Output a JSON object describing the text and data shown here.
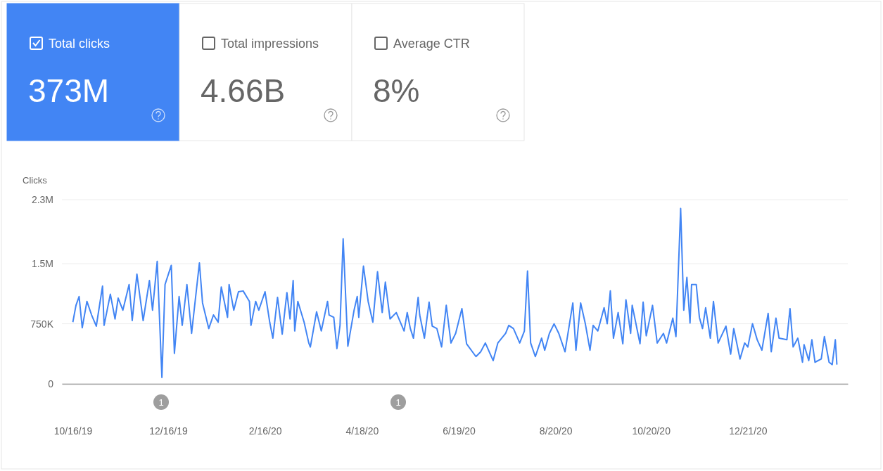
{
  "chart_data": [
    {
      "type": "other",
      "annotations": [
        "Total clicks",
        "373M",
        "Total impressions",
        "4.66B",
        "Average CTR",
        "8%"
      ]
    },
    {
      "type": "line",
      "ylabel": "Clicks",
      "grid": "y",
      "marker": "none",
      "line_style": "solid",
      "xlim": [
        "2019-10-09",
        "2021-02-23"
      ],
      "ylim": [
        0,
        2300000
      ],
      "xticks": [
        {
          "value": "2019-10-16",
          "label": "10/16/19"
        },
        {
          "value": "2019-12-16",
          "label": "12/16/19"
        },
        {
          "value": "2020-02-16",
          "label": "2/16/20"
        },
        {
          "value": "2020-04-18",
          "label": "4/18/20"
        },
        {
          "value": "2020-06-19",
          "label": "6/19/20"
        },
        {
          "value": "2020-08-20",
          "label": "8/20/20"
        },
        {
          "value": "2020-10-20",
          "label": "10/20/20"
        },
        {
          "value": "2020-12-21",
          "label": "12/21/20"
        }
      ],
      "yticks": [
        0,
        {
          "value": 750000,
          "label": "750K"
        },
        {
          "value": 1500000,
          "label": "1.5M"
        },
        {
          "value": 2300000,
          "label": "2.3M"
        }
      ],
      "annotations": [
        "1",
        "1"
      ],
      "x": [
        "2019-10-16",
        "2019-10-18",
        "2019-10-20",
        "2019-10-22",
        "2019-10-25",
        "2019-10-28",
        "2019-10-31",
        "2019-11-04",
        "2019-11-05",
        "2019-11-09",
        "2019-11-12",
        "2019-11-14",
        "2019-11-17",
        "2019-11-21",
        "2019-11-23",
        "2019-11-26",
        "2019-11-30",
        "2019-12-04",
        "2019-12-06",
        "2019-12-09",
        "2019-12-12",
        "2019-12-14",
        "2019-12-18",
        "2019-12-20",
        "2019-12-23",
        "2019-12-25",
        "2019-12-28",
        "2019-12-31",
        "2020-01-05",
        "2020-01-07",
        "2020-01-11",
        "2020-01-14",
        "2020-01-17",
        "2020-01-19",
        "2020-01-23",
        "2020-01-24",
        "2020-01-27",
        "2020-01-30",
        "2020-02-02",
        "2020-02-06",
        "2020-02-07",
        "2020-02-10",
        "2020-02-12",
        "2020-02-16",
        "2020-02-19",
        "2020-02-21",
        "2020-02-24",
        "2020-02-27",
        "2020-03-01",
        "2020-03-03",
        "2020-03-05",
        "2020-03-06",
        "2020-03-08",
        "2020-03-12",
        "2020-03-15",
        "2020-03-16",
        "2020-03-20",
        "2020-03-23",
        "2020-03-27",
        "2020-03-28",
        "2020-03-31",
        "2020-04-02",
        "2020-04-04",
        "2020-04-06",
        "2020-04-09",
        "2020-04-13",
        "2020-04-15",
        "2020-04-16",
        "2020-04-19",
        "2020-04-22",
        "2020-04-25",
        "2020-04-28",
        "2020-05-01",
        "2020-05-03",
        "2020-05-06",
        "2020-05-10",
        "2020-05-15",
        "2020-05-17",
        "2020-05-19",
        "2020-05-21",
        "2020-05-24",
        "2020-05-25",
        "2020-05-28",
        "2020-05-31",
        "2020-06-02",
        "2020-06-05",
        "2020-06-08",
        "2020-06-11",
        "2020-06-14",
        "2020-06-17",
        "2020-06-21",
        "2020-06-24",
        "2020-06-30",
        "2020-07-03",
        "2020-07-06",
        "2020-07-11",
        "2020-07-14",
        "2020-07-19",
        "2020-07-21",
        "2020-07-24",
        "2020-07-28",
        "2020-07-31",
        "2020-08-02",
        "2020-08-04",
        "2020-08-07",
        "2020-08-11",
        "2020-08-13",
        "2020-08-16",
        "2020-08-19",
        "2020-08-22",
        "2020-08-26",
        "2020-08-31",
        "2020-09-02",
        "2020-09-05",
        "2020-09-08",
        "2020-09-11",
        "2020-09-13",
        "2020-09-16",
        "2020-09-20",
        "2020-09-22",
        "2020-09-24",
        "2020-09-26",
        "2020-09-29",
        "2020-10-02",
        "2020-10-04",
        "2020-10-07",
        "2020-10-08",
        "2020-10-13",
        "2020-10-15",
        "2020-10-17",
        "2020-10-21",
        "2020-10-24",
        "2020-10-28",
        "2020-10-30",
        "2020-11-03",
        "2020-11-05",
        "2020-11-08",
        "2020-11-10",
        "2020-11-12",
        "2020-11-14",
        "2020-11-15",
        "2020-11-18",
        "2020-11-20",
        "2020-11-22",
        "2020-11-24",
        "2020-11-27",
        "2020-11-29",
        "2020-12-02",
        "2020-12-07",
        "2020-12-10",
        "2020-12-12",
        "2020-12-16",
        "2020-12-19",
        "2020-12-21",
        "2020-12-24",
        "2020-12-27",
        "2020-12-30",
        "2021-01-03",
        "2021-01-05",
        "2021-01-08",
        "2021-01-10",
        "2021-01-15",
        "2021-01-17",
        "2021-01-19",
        "2021-01-22",
        "2021-01-25",
        "2021-01-26",
        "2021-01-29",
        "2021-01-31",
        "2021-02-02",
        "2021-02-06",
        "2021-02-08",
        "2021-02-11",
        "2021-02-13",
        "2021-02-15",
        "2021-02-16"
      ],
      "series": [
        {
          "color": "#4285f4",
          "values": [
            770000,
            980000,
            1090000,
            700000,
            1030000,
            860000,
            720000,
            1220000,
            730000,
            1120000,
            810000,
            1070000,
            920000,
            1240000,
            790000,
            1370000,
            790000,
            1290000,
            920000,
            1530000,
            80000,
            1240000,
            1480000,
            380000,
            1090000,
            730000,
            1240000,
            630000,
            1510000,
            1010000,
            690000,
            860000,
            770000,
            1210000,
            830000,
            1240000,
            920000,
            1150000,
            1160000,
            1030000,
            730000,
            1030000,
            920000,
            1150000,
            770000,
            570000,
            1080000,
            620000,
            1140000,
            810000,
            1290000,
            660000,
            1030000,
            770000,
            510000,
            460000,
            900000,
            660000,
            1030000,
            860000,
            830000,
            440000,
            730000,
            1810000,
            470000,
            920000,
            1090000,
            830000,
            1470000,
            1030000,
            770000,
            1400000,
            890000,
            1270000,
            810000,
            890000,
            660000,
            890000,
            690000,
            570000,
            1080000,
            860000,
            570000,
            1020000,
            720000,
            690000,
            460000,
            980000,
            510000,
            630000,
            940000,
            500000,
            340000,
            400000,
            510000,
            290000,
            510000,
            630000,
            730000,
            690000,
            510000,
            660000,
            1410000,
            510000,
            340000,
            570000,
            420000,
            630000,
            750000,
            630000,
            400000,
            1010000,
            420000,
            1010000,
            750000,
            420000,
            730000,
            660000,
            950000,
            750000,
            1160000,
            570000,
            890000,
            500000,
            1050000,
            630000,
            980000,
            500000,
            1020000,
            600000,
            980000,
            510000,
            630000,
            510000,
            820000,
            590000,
            2190000,
            920000,
            1330000,
            760000,
            1240000,
            1240000,
            830000,
            690000,
            950000,
            570000,
            1030000,
            510000,
            720000,
            370000,
            690000,
            310000,
            510000,
            460000,
            750000,
            550000,
            420000,
            880000,
            400000,
            820000,
            570000,
            550000,
            940000,
            460000,
            570000,
            270000,
            490000,
            290000,
            550000,
            270000,
            310000,
            590000,
            270000,
            240000,
            550000,
            240000
          ]
        }
      ]
    }
  ]
}
